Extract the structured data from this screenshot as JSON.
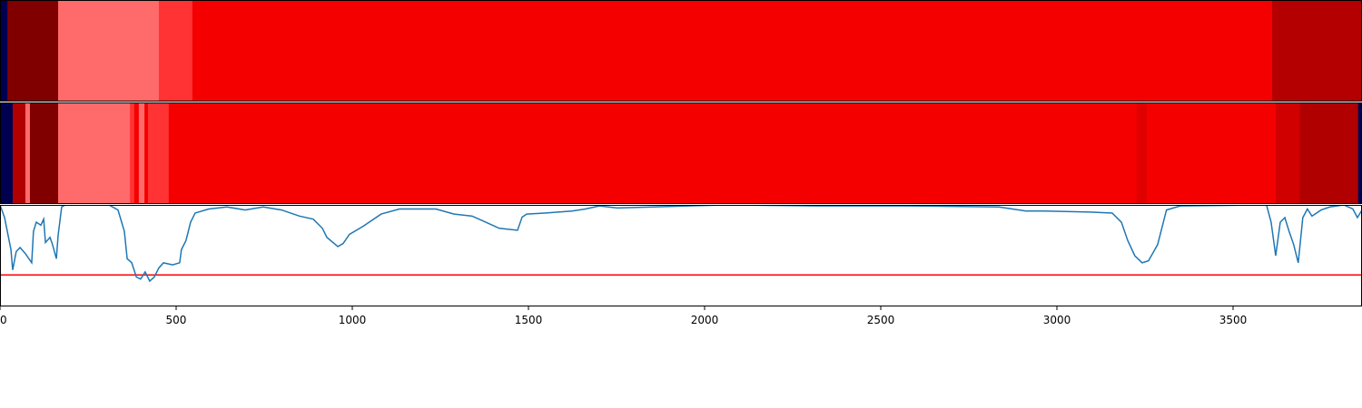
{
  "chart_data": [
    {
      "type": "heatmap",
      "xlim": [
        0,
        3866
      ],
      "edges": [
        0,
        21,
        165,
        451,
        546,
        3611,
        3866
      ],
      "colors": [
        "#000050",
        "#800000",
        "#ff6a6a",
        "#ff3333",
        "#f50000",
        "#b40000"
      ]
    },
    {
      "type": "heatmap",
      "xlim": [
        0,
        3866
      ],
      "edges": [
        0,
        36,
        72,
        85,
        165,
        369,
        381,
        394,
        410,
        420,
        479,
        3226,
        3255,
        3621,
        3690,
        3855,
        3866
      ],
      "colors": [
        "#000050",
        "#b00000",
        "#ff6a6a",
        "#800000",
        "#ff6a6a",
        "#ff3333",
        "#f50000",
        "#ff6a6a",
        "#f50000",
        "#ff3333",
        "#f50000",
        "#e00000",
        "#f50000",
        "#d00000",
        "#b00000",
        "#000050"
      ]
    },
    {
      "type": "line",
      "xlim": [
        0,
        3866
      ],
      "ylim": [
        0,
        1
      ],
      "xticks": [
        0,
        500,
        1000,
        1500,
        2000,
        2500,
        3000,
        3500
      ],
      "hlines": [
        {
          "value": 0.31,
          "color": "#ff0000"
        }
      ],
      "x": [
        0,
        13,
        31,
        36,
        46,
        57,
        72,
        90,
        95,
        103,
        116,
        124,
        129,
        142,
        149,
        160,
        165,
        175,
        186,
        309,
        335,
        353,
        361,
        374,
        387,
        399,
        412,
        425,
        438,
        451,
        464,
        490,
        510,
        515,
        528,
        541,
        554,
        593,
        644,
        696,
        747,
        799,
        850,
        889,
        915,
        928,
        959,
        974,
        992,
        1031,
        1082,
        1134,
        1237,
        1289,
        1340,
        1379,
        1417,
        1469,
        1482,
        1495,
        1546,
        1624,
        1662,
        1701,
        1752,
        1855,
        2062,
        2319,
        2577,
        2835,
        2912,
        2964,
        3093,
        3157,
        3183,
        3201,
        3221,
        3242,
        3260,
        3286,
        3311,
        3350,
        3595,
        3608,
        3621,
        3634,
        3647,
        3659,
        3672,
        3685,
        3698,
        3711,
        3724,
        3750,
        3775,
        3814,
        3840,
        3853,
        3866
      ],
      "series": [
        {
          "color": "#1f77b4",
          "values": [
            1.0,
            0.875,
            0.56,
            0.36,
            0.54,
            0.58,
            0.52,
            0.43,
            0.74,
            0.83,
            0.8,
            0.86,
            0.63,
            0.68,
            0.61,
            0.47,
            0.7,
            0.98,
            1.0,
            1.0,
            0.95,
            0.74,
            0.47,
            0.43,
            0.29,
            0.27,
            0.34,
            0.25,
            0.29,
            0.38,
            0.43,
            0.41,
            0.43,
            0.56,
            0.65,
            0.83,
            0.92,
            0.96,
            0.98,
            0.95,
            0.98,
            0.95,
            0.89,
            0.86,
            0.77,
            0.68,
            0.59,
            0.62,
            0.71,
            0.79,
            0.91,
            0.96,
            0.96,
            0.91,
            0.89,
            0.83,
            0.77,
            0.75,
            0.88,
            0.91,
            0.92,
            0.94,
            0.96,
            0.99,
            0.97,
            0.98,
            1.0,
            0.99,
            0.99,
            0.98,
            0.94,
            0.94,
            0.93,
            0.92,
            0.83,
            0.65,
            0.5,
            0.43,
            0.45,
            0.61,
            0.95,
            0.99,
            1.0,
            0.83,
            0.5,
            0.83,
            0.875,
            0.74,
            0.61,
            0.43,
            0.875,
            0.96,
            0.89,
            0.95,
            0.98,
            1.0,
            0.96,
            0.875,
            0.95
          ]
        }
      ]
    }
  ]
}
